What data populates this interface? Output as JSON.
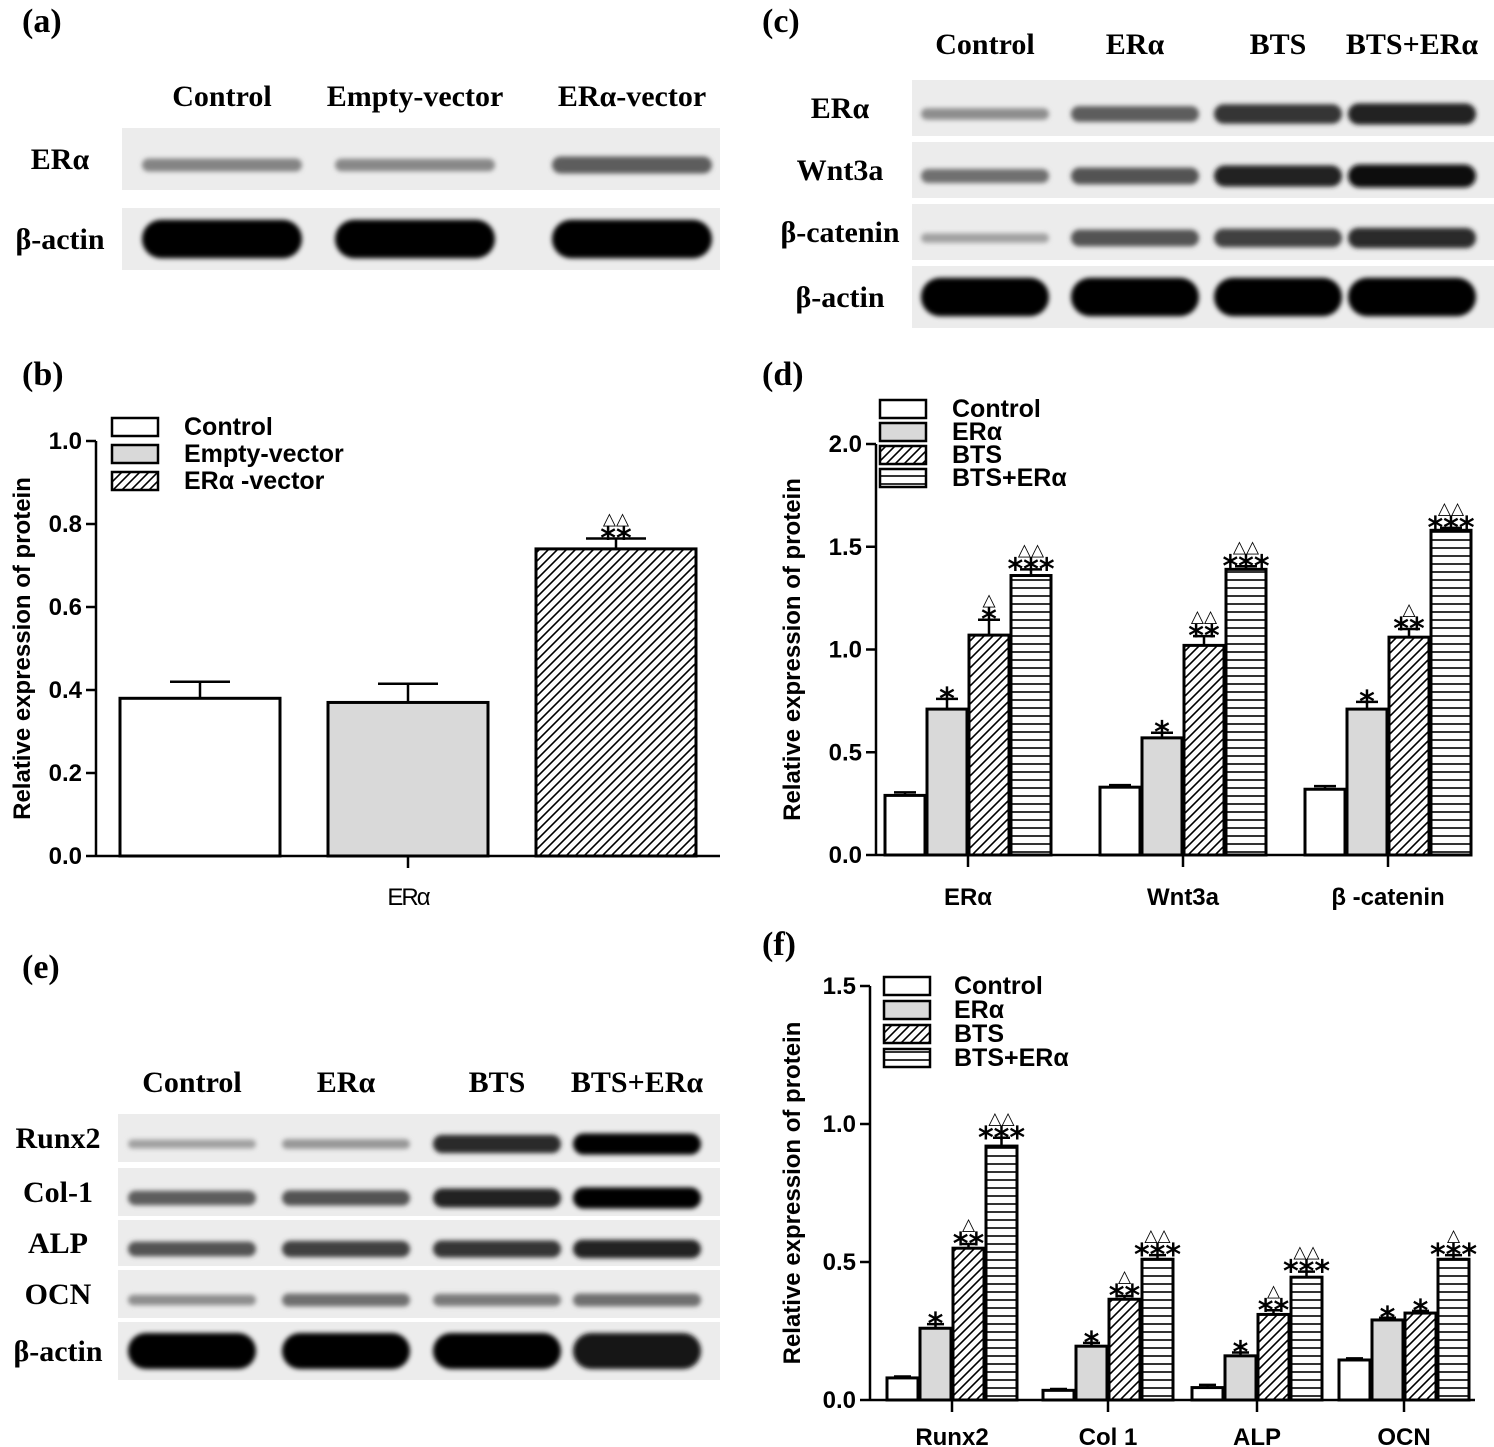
{
  "panel_labels": [
    "(a)",
    "(b)",
    "(c)",
    "(d)",
    "(e)",
    "(f)"
  ],
  "blots": [
    {
      "id": "a",
      "lanes": [
        "Control",
        "Empty-vector",
        "ERα-vector"
      ],
      "rows": [
        {
          "label": "ERα",
          "intensity": [
            0.35,
            0.33,
            0.55
          ]
        },
        {
          "label": "β-actin",
          "intensity": [
            1.0,
            1.0,
            1.0
          ]
        }
      ]
    },
    {
      "id": "c",
      "lanes": [
        "Control",
        "ERα",
        "BTS",
        "BTS+ERα"
      ],
      "rows": [
        {
          "label": "ERα",
          "intensity": [
            0.3,
            0.55,
            0.75,
            0.85
          ]
        },
        {
          "label": "Wnt3a",
          "intensity": [
            0.45,
            0.6,
            0.85,
            0.95
          ]
        },
        {
          "label": "β-catenin",
          "intensity": [
            0.2,
            0.6,
            0.7,
            0.8
          ]
        },
        {
          "label": "β-actin",
          "intensity": [
            1.0,
            1.0,
            1.0,
            1.0
          ]
        }
      ]
    },
    {
      "id": "e",
      "lanes": [
        "Control",
        "ERα",
        "BTS",
        "BTS+ERα"
      ],
      "rows": [
        {
          "label": "Runx2",
          "intensity": [
            0.2,
            0.25,
            0.8,
            1.0
          ]
        },
        {
          "label": "Col-1",
          "intensity": [
            0.55,
            0.6,
            0.85,
            1.0
          ]
        },
        {
          "label": "ALP",
          "intensity": [
            0.6,
            0.7,
            0.75,
            0.85
          ]
        },
        {
          "label": "OCN",
          "intensity": [
            0.3,
            0.45,
            0.4,
            0.45
          ]
        },
        {
          "label": "β-actin",
          "intensity": [
            1.0,
            1.0,
            1.0,
            0.9
          ]
        }
      ]
    }
  ],
  "chart_data": [
    {
      "id": "b",
      "type": "bar",
      "ylabel": "Relative expression of protein",
      "xlabel": "",
      "ylim": [
        0,
        1.0
      ],
      "yticks": [
        "0.0",
        "0.2",
        "0.4",
        "0.6",
        "0.8",
        "1.0"
      ],
      "categories": [
        "ERα"
      ],
      "series": [
        {
          "name": "Control",
          "pattern": "white",
          "values": [
            0.38
          ],
          "errors": [
            0.04
          ],
          "stars": [
            ""
          ],
          "triangles": [
            ""
          ]
        },
        {
          "name": "Empty-vector",
          "pattern": "gray",
          "values": [
            0.37
          ],
          "errors": [
            0.045
          ],
          "stars": [
            ""
          ],
          "triangles": [
            ""
          ]
        },
        {
          "name": "ERα -vector",
          "pattern": "diag",
          "values": [
            0.74
          ],
          "errors": [
            0.025
          ],
          "stars": [
            "**"
          ],
          "triangles": [
            "△△"
          ]
        }
      ]
    },
    {
      "id": "d",
      "type": "bar",
      "ylabel": "Relative expression of protein",
      "xlabel": "",
      "ylim": [
        0,
        2.0
      ],
      "yticks": [
        "0.0",
        "0.5",
        "1.0",
        "1.5",
        "2.0"
      ],
      "categories": [
        "ERα",
        "Wnt3a",
        "β -catenin"
      ],
      "series": [
        {
          "name": "Control",
          "pattern": "white",
          "values": [
            0.29,
            0.33,
            0.32
          ],
          "errors": [
            0.015,
            0.01,
            0.015
          ],
          "stars": [
            "",
            "",
            ""
          ],
          "triangles": [
            "",
            "",
            ""
          ]
        },
        {
          "name": "ERα",
          "pattern": "gray",
          "values": [
            0.71,
            0.57,
            0.71
          ],
          "errors": [
            0.05,
            0.025,
            0.035
          ],
          "stars": [
            "*",
            "*",
            "*"
          ],
          "triangles": [
            "",
            "",
            ""
          ]
        },
        {
          "name": "BTS",
          "pattern": "diag",
          "values": [
            1.07,
            1.02,
            1.06
          ],
          "errors": [
            0.075,
            0.045,
            0.04
          ],
          "stars": [
            "*",
            "**",
            "**"
          ],
          "triangles": [
            "△",
            "△△",
            "△"
          ]
        },
        {
          "name": "BTS+ERα",
          "pattern": "horiz",
          "values": [
            1.36,
            1.39,
            1.58
          ],
          "errors": [
            0.03,
            0.015,
            0.012
          ],
          "stars": [
            "***",
            "***",
            "***"
          ],
          "triangles": [
            "△△",
            "△△",
            "△△"
          ]
        }
      ]
    },
    {
      "id": "f",
      "type": "bar",
      "ylabel": "Relative expression of protein",
      "xlabel": "",
      "ylim": [
        0,
        1.5
      ],
      "yticks": [
        "0.0",
        "0.5",
        "1.0",
        "1.5"
      ],
      "categories": [
        "Runx2",
        "Col 1",
        "ALP",
        "OCN"
      ],
      "series": [
        {
          "name": "Control",
          "pattern": "white",
          "values": [
            0.08,
            0.035,
            0.045,
            0.145
          ],
          "errors": [
            0.005,
            0.005,
            0.01,
            0.006
          ],
          "stars": [
            "",
            "",
            "",
            ""
          ],
          "triangles": [
            "",
            "",
            "",
            ""
          ]
        },
        {
          "name": "ERα",
          "pattern": "gray",
          "values": [
            0.26,
            0.195,
            0.16,
            0.29
          ],
          "errors": [
            0.015,
            0.012,
            0.012,
            0.008
          ],
          "stars": [
            "*",
            "*",
            "*",
            "*"
          ],
          "triangles": [
            "",
            "",
            "",
            ""
          ]
        },
        {
          "name": "BTS",
          "pattern": "diag",
          "values": [
            0.55,
            0.365,
            0.31,
            0.315
          ],
          "errors": [
            0.015,
            0.012,
            0.015,
            0.008
          ],
          "stars": [
            "**",
            "**",
            "**",
            "*"
          ],
          "triangles": [
            "△",
            "△",
            "△",
            ""
          ]
        },
        {
          "name": "BTS+ERα",
          "pattern": "horiz",
          "values": [
            0.92,
            0.51,
            0.445,
            0.51
          ],
          "errors": [
            0.03,
            0.015,
            0.02,
            0.015
          ],
          "stars": [
            "***",
            "***",
            "***",
            "***"
          ],
          "triangles": [
            "△△",
            "△△",
            "△△",
            "△"
          ]
        }
      ]
    }
  ]
}
